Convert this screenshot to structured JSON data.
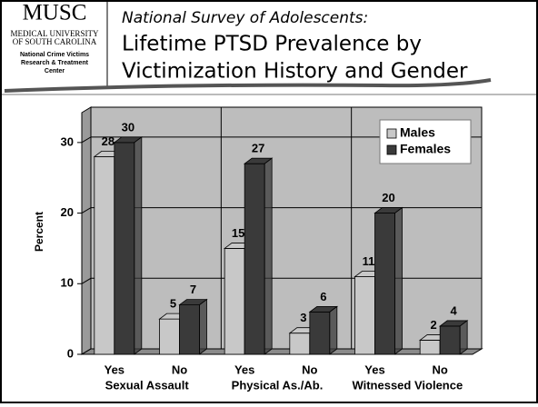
{
  "header": {
    "logo": {
      "name": "MUSC",
      "lines": [
        "MEDICAL UNIVERSITY",
        "OF SOUTH CAROLINA"
      ],
      "center": [
        "National Crime Victims",
        "Research & Treatment",
        "Center"
      ]
    },
    "subtitle": "National Survey of Adolescents:",
    "title_lines": [
      "Lifetime PTSD Prevalence by",
      "Victimization History and Gender"
    ]
  },
  "chart_data": {
    "type": "bar3d",
    "y_label": "Percent",
    "categories": [
      "Yes",
      "No",
      "Yes",
      "No",
      "Yes",
      "No"
    ],
    "groups": [
      "Sexual Assault",
      "Physical As./Ab.",
      "Witnessed Violence"
    ],
    "series": [
      {
        "name": "Males",
        "color": "#c8c8c8",
        "values": [
          28,
          5,
          15,
          3,
          11,
          2
        ]
      },
      {
        "name": "Females",
        "color": "#3a3a3a",
        "values": [
          30,
          7,
          27,
          6,
          20,
          4
        ]
      }
    ],
    "ylim": [
      0,
      35
    ],
    "yticks": [
      0,
      10,
      20,
      30
    ],
    "legend": "upper right"
  }
}
